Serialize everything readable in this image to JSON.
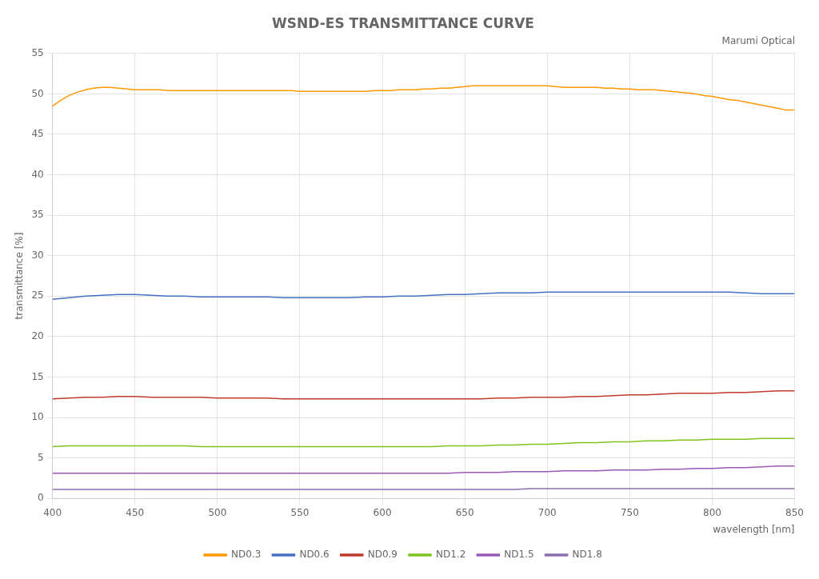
{
  "chart_data": {
    "type": "line",
    "title": "WSND-ES TRANSMITTANCE CURVE",
    "y_label": "transmittance [%]",
    "x_label": "wavelength [nm]",
    "annotations": [
      {
        "text": "Marumi Optical"
      }
    ],
    "xlim": [
      400,
      850
    ],
    "ylim": [
      0,
      55
    ],
    "xticks": [
      400,
      450,
      500,
      550,
      600,
      650,
      700,
      750,
      800,
      850
    ],
    "yticks": [
      0,
      5,
      10,
      15,
      20,
      25,
      30,
      35,
      40,
      45,
      50,
      55
    ],
    "grid": true,
    "legend": "bottom",
    "series": [
      {
        "name": "ND0.3",
        "color": "#ff9900",
        "x": [
          400,
          405,
          410,
          415,
          420,
          425,
          430,
          435,
          440,
          445,
          450,
          455,
          460,
          465,
          470,
          475,
          480,
          485,
          490,
          495,
          500,
          505,
          510,
          515,
          520,
          525,
          530,
          535,
          540,
          545,
          550,
          555,
          560,
          565,
          570,
          575,
          580,
          585,
          590,
          595,
          600,
          605,
          610,
          615,
          620,
          625,
          630,
          635,
          640,
          645,
          650,
          655,
          660,
          665,
          670,
          675,
          680,
          685,
          690,
          695,
          700,
          705,
          710,
          715,
          720,
          725,
          730,
          735,
          740,
          745,
          750,
          755,
          760,
          765,
          770,
          775,
          780,
          785,
          790,
          795,
          800,
          805,
          810,
          815,
          820,
          825,
          830,
          835,
          840,
          845,
          850
        ],
        "values": [
          48.5,
          49.2,
          49.8,
          50.2,
          50.5,
          50.7,
          50.8,
          50.8,
          50.7,
          50.6,
          50.5,
          50.5,
          50.5,
          50.5,
          50.4,
          50.4,
          50.4,
          50.4,
          50.4,
          50.4,
          50.4,
          50.4,
          50.4,
          50.4,
          50.4,
          50.4,
          50.4,
          50.4,
          50.4,
          50.4,
          50.3,
          50.3,
          50.3,
          50.3,
          50.3,
          50.3,
          50.3,
          50.3,
          50.3,
          50.4,
          50.4,
          50.4,
          50.5,
          50.5,
          50.5,
          50.6,
          50.6,
          50.7,
          50.7,
          50.8,
          50.9,
          51.0,
          51.0,
          51.0,
          51.0,
          51.0,
          51.0,
          51.0,
          51.0,
          51.0,
          51.0,
          50.9,
          50.8,
          50.8,
          50.8,
          50.8,
          50.8,
          50.7,
          50.7,
          50.6,
          50.6,
          50.5,
          50.5,
          50.5,
          50.4,
          50.3,
          50.2,
          50.1,
          50.0,
          49.8,
          49.7,
          49.5,
          49.3,
          49.2,
          49.0,
          48.8,
          48.6,
          48.4,
          48.2,
          48.0,
          48.0
        ]
      },
      {
        "name": "ND0.6",
        "color": "#4472c4",
        "x": [
          400,
          410,
          420,
          430,
          440,
          450,
          460,
          470,
          480,
          490,
          500,
          510,
          520,
          530,
          540,
          550,
          560,
          570,
          580,
          590,
          600,
          610,
          620,
          630,
          640,
          650,
          660,
          670,
          680,
          690,
          700,
          710,
          720,
          730,
          740,
          750,
          760,
          770,
          780,
          790,
          800,
          810,
          820,
          830,
          840,
          850
        ],
        "values": [
          24.6,
          24.8,
          25.0,
          25.1,
          25.2,
          25.2,
          25.1,
          25.0,
          25.0,
          24.9,
          24.9,
          24.9,
          24.9,
          24.9,
          24.8,
          24.8,
          24.8,
          24.8,
          24.8,
          24.9,
          24.9,
          25.0,
          25.0,
          25.1,
          25.2,
          25.2,
          25.3,
          25.4,
          25.4,
          25.4,
          25.5,
          25.5,
          25.5,
          25.5,
          25.5,
          25.5,
          25.5,
          25.5,
          25.5,
          25.5,
          25.5,
          25.5,
          25.4,
          25.3,
          25.3,
          25.3
        ]
      },
      {
        "name": "ND0.9",
        "color": "#c0392b",
        "x": [
          400,
          410,
          420,
          430,
          440,
          450,
          460,
          470,
          480,
          490,
          500,
          510,
          520,
          530,
          540,
          550,
          560,
          570,
          580,
          590,
          600,
          610,
          620,
          630,
          640,
          650,
          660,
          670,
          680,
          690,
          700,
          710,
          720,
          730,
          740,
          750,
          760,
          770,
          780,
          790,
          800,
          810,
          820,
          830,
          840,
          850
        ],
        "values": [
          12.3,
          12.4,
          12.5,
          12.5,
          12.6,
          12.6,
          12.5,
          12.5,
          12.5,
          12.5,
          12.4,
          12.4,
          12.4,
          12.4,
          12.3,
          12.3,
          12.3,
          12.3,
          12.3,
          12.3,
          12.3,
          12.3,
          12.3,
          12.3,
          12.3,
          12.3,
          12.3,
          12.4,
          12.4,
          12.5,
          12.5,
          12.5,
          12.6,
          12.6,
          12.7,
          12.8,
          12.8,
          12.9,
          13.0,
          13.0,
          13.0,
          13.1,
          13.1,
          13.2,
          13.3,
          13.3
        ]
      },
      {
        "name": "ND1.2",
        "color": "#7fc31c",
        "x": [
          400,
          410,
          420,
          430,
          440,
          450,
          460,
          470,
          480,
          490,
          500,
          510,
          520,
          530,
          540,
          550,
          560,
          570,
          580,
          590,
          600,
          610,
          620,
          630,
          640,
          650,
          660,
          670,
          680,
          690,
          700,
          710,
          720,
          730,
          740,
          750,
          760,
          770,
          780,
          790,
          800,
          810,
          820,
          830,
          840,
          850
        ],
        "values": [
          6.4,
          6.5,
          6.5,
          6.5,
          6.5,
          6.5,
          6.5,
          6.5,
          6.5,
          6.4,
          6.4,
          6.4,
          6.4,
          6.4,
          6.4,
          6.4,
          6.4,
          6.4,
          6.4,
          6.4,
          6.4,
          6.4,
          6.4,
          6.4,
          6.5,
          6.5,
          6.5,
          6.6,
          6.6,
          6.7,
          6.7,
          6.8,
          6.9,
          6.9,
          7.0,
          7.0,
          7.1,
          7.1,
          7.2,
          7.2,
          7.3,
          7.3,
          7.3,
          7.4,
          7.4,
          7.4
        ]
      },
      {
        "name": "ND1.5",
        "color": "#9b59b6",
        "x": [
          400,
          410,
          420,
          430,
          440,
          450,
          460,
          470,
          480,
          490,
          500,
          510,
          520,
          530,
          540,
          550,
          560,
          570,
          580,
          590,
          600,
          610,
          620,
          630,
          640,
          650,
          660,
          670,
          680,
          690,
          700,
          710,
          720,
          730,
          740,
          750,
          760,
          770,
          780,
          790,
          800,
          810,
          820,
          830,
          840,
          850
        ],
        "values": [
          3.1,
          3.1,
          3.1,
          3.1,
          3.1,
          3.1,
          3.1,
          3.1,
          3.1,
          3.1,
          3.1,
          3.1,
          3.1,
          3.1,
          3.1,
          3.1,
          3.1,
          3.1,
          3.1,
          3.1,
          3.1,
          3.1,
          3.1,
          3.1,
          3.1,
          3.2,
          3.2,
          3.2,
          3.3,
          3.3,
          3.3,
          3.4,
          3.4,
          3.4,
          3.5,
          3.5,
          3.5,
          3.6,
          3.6,
          3.7,
          3.7,
          3.8,
          3.8,
          3.9,
          4.0,
          4.0
        ]
      },
      {
        "name": "ND1.8",
        "color": "#8B6FAE",
        "x": [
          400,
          410,
          420,
          430,
          440,
          450,
          460,
          470,
          480,
          490,
          500,
          510,
          520,
          530,
          540,
          550,
          560,
          570,
          580,
          590,
          600,
          610,
          620,
          630,
          640,
          650,
          660,
          670,
          680,
          690,
          700,
          710,
          720,
          730,
          740,
          750,
          760,
          770,
          780,
          790,
          800,
          810,
          820,
          830,
          840,
          850
        ],
        "values": [
          1.1,
          1.1,
          1.1,
          1.1,
          1.1,
          1.1,
          1.1,
          1.1,
          1.1,
          1.1,
          1.1,
          1.1,
          1.1,
          1.1,
          1.1,
          1.1,
          1.1,
          1.1,
          1.1,
          1.1,
          1.1,
          1.1,
          1.1,
          1.1,
          1.1,
          1.1,
          1.1,
          1.1,
          1.1,
          1.2,
          1.2,
          1.2,
          1.2,
          1.2,
          1.2,
          1.2,
          1.2,
          1.2,
          1.2,
          1.2,
          1.2,
          1.2,
          1.2,
          1.2,
          1.2,
          1.2
        ]
      }
    ]
  }
}
